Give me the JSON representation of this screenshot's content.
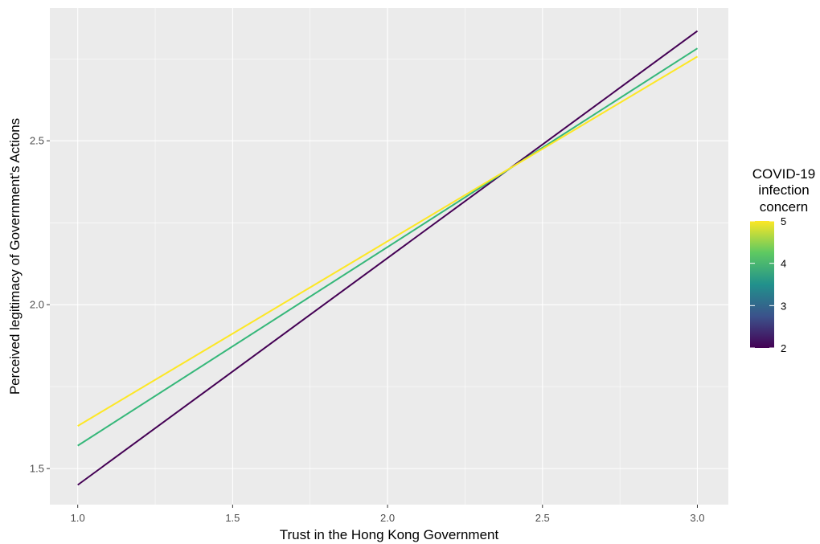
{
  "chart_data": {
    "type": "line",
    "xlabel": "Trust in the Hong Kong Government",
    "ylabel": "Perceived legitimacy of Government's Actions",
    "xlim": [
      0.91,
      3.1
    ],
    "ylim": [
      1.39,
      2.905
    ],
    "x_ticks": [
      1.0,
      1.5,
      2.0,
      2.5,
      3.0
    ],
    "x_tick_labels": [
      "1.0",
      "1.5",
      "2.0",
      "2.5",
      "3.0"
    ],
    "y_ticks": [
      1.5,
      2.0,
      2.5
    ],
    "y_tick_labels": [
      "1.5",
      "2.0",
      "2.5"
    ],
    "grid": true,
    "series": [
      {
        "concern": 2,
        "color": "#440154",
        "x": [
          1.0,
          3.0
        ],
        "y": [
          1.45,
          2.835
        ]
      },
      {
        "concern": 4,
        "color": "#35b779",
        "x": [
          1.0,
          3.0
        ],
        "y": [
          1.57,
          2.782
        ]
      },
      {
        "concern": 5,
        "color": "#fde725",
        "x": [
          1.0,
          3.0
        ],
        "y": [
          1.63,
          2.757
        ]
      }
    ],
    "legend": {
      "title_lines": [
        "COVID-19",
        "infection",
        "concern"
      ],
      "position": "right",
      "range": [
        2,
        5
      ],
      "ticks": [
        2,
        3,
        4,
        5
      ],
      "tick_labels": [
        "2",
        "3",
        "4",
        "5"
      ],
      "colors": [
        "#440154",
        "#3b528b",
        "#21918c",
        "#5ec962",
        "#fde725"
      ]
    }
  }
}
